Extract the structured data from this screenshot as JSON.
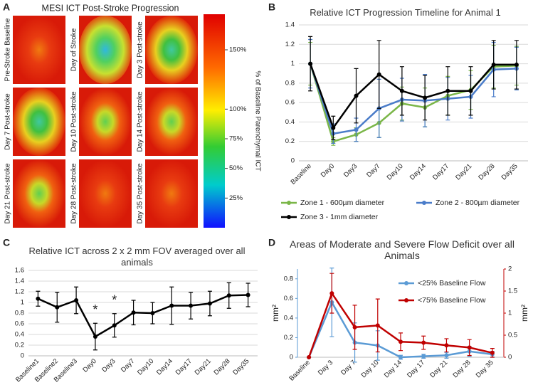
{
  "panel_a": {
    "panel_label": "A",
    "title": "MESI ICT Post-Stroke Progression",
    "tiles": [
      "Pre-Stroke Baseline",
      "Day of Stroke",
      "Day 3 Post-stroke",
      "Day 7 Post-stroke",
      "Day 10 Post-stroke",
      "Day 14 Post-stroke",
      "Day 21 Post-stroke",
      "Day 28 Post-stroke",
      "Day 35 Post-stroke"
    ],
    "colorbar": {
      "label": "% of Baseline Parenchymal ICT",
      "clim": [
        0,
        180
      ],
      "ticks": [
        {
          "value": 25,
          "label": "25%"
        },
        {
          "value": 50,
          "label": "50%"
        },
        {
          "value": 75,
          "label": "75%"
        },
        {
          "value": 100,
          "label": "100%"
        },
        {
          "value": 150,
          "label": "150%"
        }
      ]
    }
  },
  "chart_data": [
    {
      "type": "line",
      "panel_label": "B",
      "title": "Relative ICT Progression Timeline for Animal 1",
      "categories": [
        "Baseline",
        "Day0",
        "Day3",
        "Day7",
        "Day10",
        "Day14",
        "Day17",
        "Day21",
        "Day28",
        "Day35"
      ],
      "series": [
        {
          "name": "Zone 1 - 600µm diameter",
          "color": "#7ab648",
          "values": [
            1,
            0.2,
            0.27,
            0.39,
            0.59,
            0.55,
            0.67,
            0.73,
            0.97,
            0.98
          ],
          "errors": [
            0.22,
            0.04,
            0.07,
            0.15,
            0.17,
            0.2,
            0.2,
            0.2,
            0.22,
            0.2
          ]
        },
        {
          "name": "Zone 2 - 800µm diameter",
          "color": "#4a7cc9",
          "values": [
            1,
            0.28,
            0.32,
            0.54,
            0.63,
            0.62,
            0.64,
            0.66,
            0.94,
            0.95
          ],
          "errors": [
            0.25,
            0.1,
            0.12,
            0.3,
            0.22,
            0.27,
            0.22,
            0.22,
            0.28,
            0.22
          ]
        },
        {
          "name": "Zone 3 - 1mm diameter",
          "color": "#000000",
          "values": [
            1,
            0.34,
            0.67,
            0.89,
            0.72,
            0.65,
            0.72,
            0.72,
            0.99,
            0.99
          ],
          "errors": [
            0.28,
            0.12,
            0.28,
            0.35,
            0.25,
            0.23,
            0.25,
            0.25,
            0.25,
            0.25
          ]
        }
      ],
      "ylim": [
        0,
        1.4
      ],
      "yticks": [
        0,
        0.2,
        0.4,
        0.6,
        0.8,
        1,
        1.2,
        1.4
      ],
      "grid": true
    },
    {
      "type": "line",
      "panel_label": "C",
      "title": "Relative ICT across 2 x 2 mm FOV averaged over all animals",
      "categories": [
        "Baseline1",
        "Baseline2",
        "Baseline3",
        "Day0",
        "Day3",
        "Day7",
        "Day10",
        "Day14",
        "Day17",
        "Day21",
        "Day28",
        "Day35"
      ],
      "series": [
        {
          "color": "#000000",
          "values": [
            1.07,
            0.91,
            1.04,
            0.36,
            0.57,
            0.81,
            0.8,
            0.94,
            0.94,
            0.98,
            1.13,
            1.14
          ],
          "errors": [
            0.14,
            0.28,
            0.25,
            0.25,
            0.22,
            0.23,
            0.2,
            0.35,
            0.25,
            0.23,
            0.24,
            0.22
          ]
        }
      ],
      "annotations": [
        {
          "text": "*",
          "at": "Day0"
        },
        {
          "text": "*",
          "at": "Day3"
        }
      ],
      "ylim": [
        0,
        1.6
      ],
      "yticks": [
        0,
        0.2,
        0.4,
        0.6,
        0.8,
        1,
        1.2,
        1.4,
        1.6
      ],
      "grid": true
    },
    {
      "type": "line",
      "panel_label": "D",
      "title": "Areas of Moderate and Severe Flow Deficit over all Animals",
      "categories": [
        "Baseline",
        "Day 3",
        "Day 7",
        "Day 10",
        "Day 14",
        "Day 17",
        "Day 21",
        "Day 28",
        "Day 35"
      ],
      "series": [
        {
          "name": "<25% Baseline Flow",
          "color": "#5b9bd5",
          "values": [
            0,
            0.56,
            0.15,
            0.12,
            0,
            0.01,
            0.02,
            0.06,
            0.03
          ],
          "errors": [
            0,
            0.35,
            0.2,
            0.15,
            0.02,
            0.02,
            0.03,
            0.05,
            0.03
          ]
        },
        {
          "name": "<75%  Baseline Flow",
          "color": "#c00000",
          "axis": "y2",
          "values": [
            0,
            1.45,
            0.68,
            0.72,
            0.35,
            0.33,
            0.27,
            0.22,
            0.1
          ],
          "errors": [
            0,
            0.45,
            0.5,
            0.6,
            0.2,
            0.15,
            0.15,
            0.18,
            0.1
          ]
        }
      ],
      "y_label": "mm²",
      "y2_label": "mm²",
      "ylim": [
        0,
        0.9
      ],
      "yticks": [
        0,
        0.2,
        0.4,
        0.6,
        0.8
      ],
      "y2lim": [
        0,
        2
      ],
      "y2ticks": [
        0,
        0.5,
        1,
        1.5,
        2
      ],
      "grid": false
    }
  ]
}
